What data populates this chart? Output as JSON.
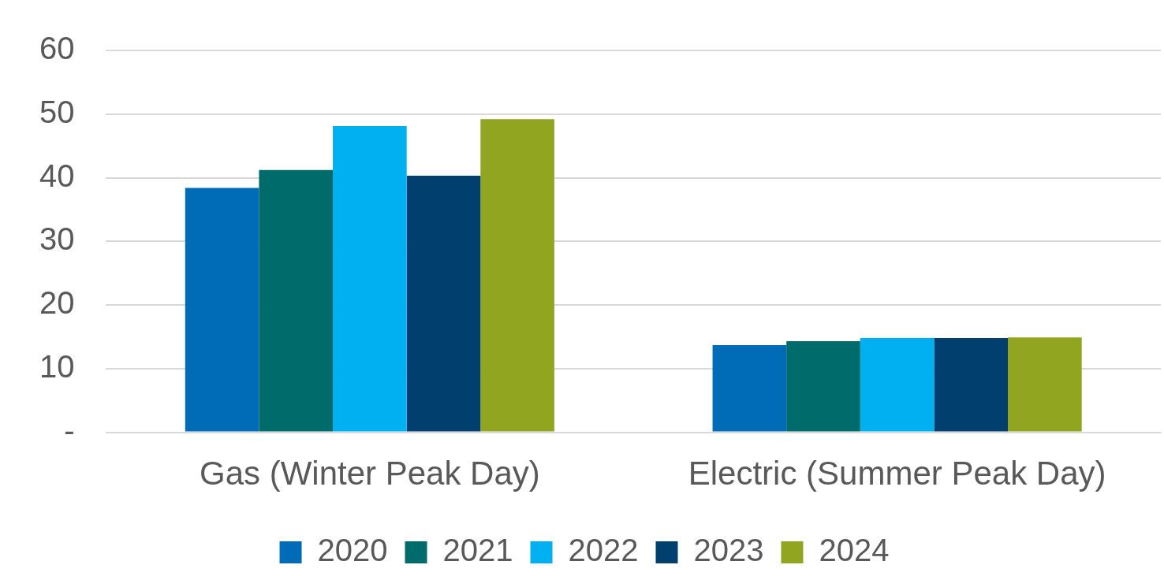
{
  "chart_data": {
    "type": "bar",
    "categories": [
      "Gas (Winter Peak Day)",
      "Electric (Summer Peak Day)"
    ],
    "series": [
      {
        "name": "2020",
        "color": "#006bb6",
        "values": [
          38.4,
          13.7
        ]
      },
      {
        "name": "2021",
        "color": "#006b6b",
        "values": [
          41.2,
          14.3
        ]
      },
      {
        "name": "2022",
        "color": "#00b0f0",
        "values": [
          48.1,
          14.8
        ]
      },
      {
        "name": "2023",
        "color": "#003f6e",
        "values": [
          40.3,
          14.8
        ]
      },
      {
        "name": "2024",
        "color": "#92a521",
        "values": [
          49.2,
          14.9
        ]
      }
    ],
    "ylim": [
      0,
      60
    ],
    "yticks": [
      {
        "value": 0,
        "label": "-"
      },
      10,
      20,
      30,
      40,
      50,
      60
    ],
    "grid": "y",
    "legend": "bottom"
  }
}
